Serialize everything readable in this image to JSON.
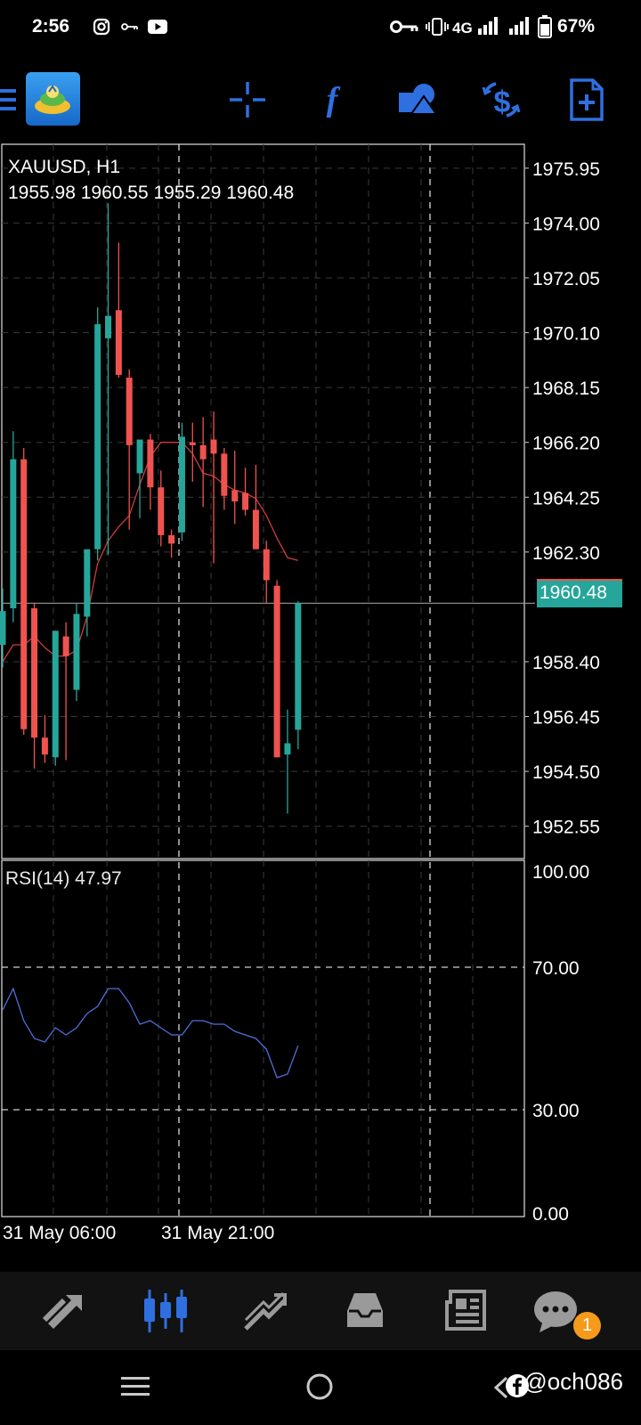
{
  "status_bar": {
    "time": "2:56",
    "network": "4G",
    "battery": "67%",
    "icons": [
      "instagram-icon",
      "key-icon",
      "youtube-icon",
      "vpn-key-icon",
      "vibrate-icon",
      "signal-icon",
      "battery-icon"
    ]
  },
  "toolbar": {
    "icons": [
      "menu-icon",
      "app-logo-icon",
      "crosshair-icon",
      "indicators-icon",
      "objects-icon",
      "symbol-change-icon",
      "new-order-icon"
    ],
    "accent": "#2f6fe0"
  },
  "chart": {
    "symbol_timeframe": "XAUUSD, H1",
    "ohlc": "1955.98 1960.55 1955.29 1960.48",
    "current_price": "1960.48",
    "indicator_label": "RSI(14) 47.97",
    "time_labels": [
      "31 May 06:00",
      "31 May 21:00"
    ],
    "bull_color": "#26a69a",
    "bear_color": "#ef5350"
  },
  "chart_data": [
    {
      "type": "candlestick",
      "title": "XAUUSD, H1",
      "y_ticks": [
        "1975.95",
        "1974.00",
        "1972.05",
        "1970.10",
        "1968.15",
        "1966.20",
        "1964.25",
        "1962.30",
        "1958.40",
        "1956.45",
        "1954.50",
        "1952.55"
      ],
      "ylim": [
        1951.4,
        1976.8
      ],
      "x_ticks": [
        "31 May 06:00",
        "31 May 21:00"
      ],
      "candles": [
        {
          "o": 1959.0,
          "h": 1961.0,
          "l": 1958.2,
          "c": 1960.2
        },
        {
          "o": 1960.3,
          "h": 1966.6,
          "l": 1959.8,
          "c": 1965.6
        },
        {
          "o": 1965.6,
          "h": 1966.0,
          "l": 1955.8,
          "c": 1956.0
        },
        {
          "o": 1960.3,
          "h": 1960.5,
          "l": 1954.6,
          "c": 1955.7
        },
        {
          "o": 1955.7,
          "h": 1956.5,
          "l": 1954.8,
          "c": 1955.1
        },
        {
          "o": 1955.0,
          "h": 1959.5,
          "l": 1954.7,
          "c": 1959.5
        },
        {
          "o": 1959.3,
          "h": 1959.8,
          "l": 1954.9,
          "c": 1958.6
        },
        {
          "o": 1957.4,
          "h": 1960.5,
          "l": 1957.0,
          "c": 1960.1
        },
        {
          "o": 1960.0,
          "h": 1962.2,
          "l": 1959.3,
          "c": 1962.4
        },
        {
          "o": 1962.4,
          "h": 1971.0,
          "l": 1962.0,
          "c": 1970.4
        },
        {
          "o": 1969.9,
          "h": 1974.7,
          "l": 1962.2,
          "c": 1970.7
        },
        {
          "o": 1970.9,
          "h": 1973.3,
          "l": 1968.5,
          "c": 1968.6
        },
        {
          "o": 1968.5,
          "h": 1968.8,
          "l": 1963.1,
          "c": 1966.1
        },
        {
          "o": 1965.1,
          "h": 1966.3,
          "l": 1963.5,
          "c": 1966.3
        },
        {
          "o": 1966.3,
          "h": 1966.5,
          "l": 1963.8,
          "c": 1964.6
        },
        {
          "o": 1964.6,
          "h": 1965.2,
          "l": 1962.5,
          "c": 1962.9
        },
        {
          "o": 1962.9,
          "h": 1963.1,
          "l": 1962.1,
          "c": 1962.6
        },
        {
          "o": 1963.0,
          "h": 1966.9,
          "l": 1962.7,
          "c": 1966.4
        },
        {
          "o": 1966.2,
          "h": 1966.9,
          "l": 1964.8,
          "c": 1966.1
        },
        {
          "o": 1966.1,
          "h": 1967.1,
          "l": 1963.9,
          "c": 1965.6
        },
        {
          "o": 1966.3,
          "h": 1967.3,
          "l": 1961.9,
          "c": 1965.8
        },
        {
          "o": 1965.8,
          "h": 1966.0,
          "l": 1963.8,
          "c": 1964.3
        },
        {
          "o": 1964.5,
          "h": 1965.9,
          "l": 1963.3,
          "c": 1964.1
        },
        {
          "o": 1964.4,
          "h": 1965.3,
          "l": 1963.6,
          "c": 1963.8
        },
        {
          "o": 1963.8,
          "h": 1965.4,
          "l": 1962.4,
          "c": 1962.4
        },
        {
          "o": 1962.4,
          "h": 1962.7,
          "l": 1960.5,
          "c": 1961.3
        },
        {
          "o": 1961.1,
          "h": 1961.3,
          "l": 1955.1,
          "c": 1955.0
        },
        {
          "o": 1955.1,
          "h": 1956.7,
          "l": 1953.0,
          "c": 1955.5
        },
        {
          "o": 1955.98,
          "h": 1960.55,
          "l": 1955.29,
          "c": 1960.48
        }
      ],
      "ma_line": [
        1958.4,
        1959.0,
        1959.0,
        1959.3,
        1958.9,
        1958.6,
        1958.6,
        1958.8,
        1960.0,
        1961.9,
        1962.7,
        1963.2,
        1963.6,
        1964.7,
        1965.7,
        1966.2,
        1966.2,
        1966.2,
        1965.8,
        1965.1,
        1965.0,
        1964.7,
        1964.5,
        1964.4,
        1964.2,
        1963.6,
        1962.8,
        1962.1,
        1962.0
      ],
      "ma_color": "#d23b3b"
    },
    {
      "type": "line",
      "title": "RSI(14) 47.97",
      "y_ticks": [
        "100.00",
        "70.00",
        "30.00",
        "0.00"
      ],
      "ylim": [
        0,
        100
      ],
      "levels": [
        70,
        30
      ],
      "values": [
        58,
        64,
        55,
        50,
        49,
        53,
        51,
        53,
        57,
        59,
        64,
        64,
        60,
        54,
        55,
        53,
        51,
        51,
        55,
        55,
        54,
        54,
        52,
        51,
        50,
        47,
        39,
        40,
        47.97
      ],
      "color": "#4c6fd8"
    }
  ],
  "bottom_nav": {
    "items": [
      "quotes-icon",
      "chart-icon",
      "trade-icon",
      "history-icon",
      "news-icon",
      "messages-icon"
    ],
    "active_index": 1,
    "messages_badge": "1"
  },
  "system_nav": {
    "watermark": "@och086",
    "icons": [
      "recents-icon",
      "home-icon",
      "back-icon",
      "facebook-icon"
    ]
  }
}
